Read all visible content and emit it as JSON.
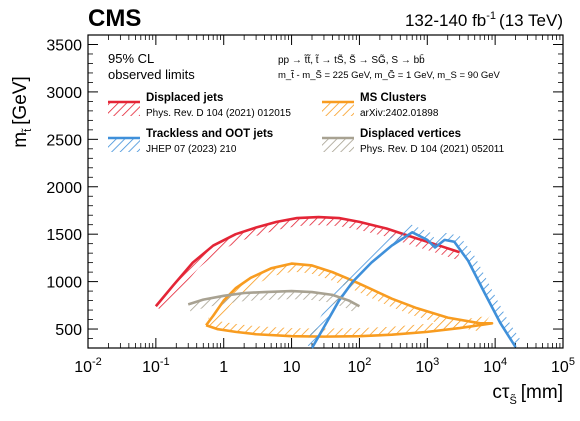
{
  "chart_data": {
    "type": "line",
    "experiment": "CMS",
    "lumi": "132-140 fb",
    "lumi_sup": "-1",
    "energy": "(13 TeV)",
    "xlabel": "cτ",
    "xlabel_sub": "S̃",
    "xlabel_unit": "[mm]",
    "ylabel": "m",
    "ylabel_sub": "t̃",
    "ylabel_unit": "[GeV]",
    "xscale": "log",
    "xlim": [
      0.01,
      100000
    ],
    "ylim": [
      300,
      3600
    ],
    "x_ticks": [
      {
        "value": 0.01,
        "base": "10",
        "exp": "-2"
      },
      {
        "value": 0.1,
        "base": "10",
        "exp": "-1"
      },
      {
        "value": 1,
        "base": "1",
        "exp": ""
      },
      {
        "value": 10,
        "base": "10",
        "exp": ""
      },
      {
        "value": 100,
        "base": "10",
        "exp": "2"
      },
      {
        "value": 1000,
        "base": "10",
        "exp": "3"
      },
      {
        "value": 10000,
        "base": "10",
        "exp": "4"
      },
      {
        "value": 100000,
        "base": "10",
        "exp": "5"
      }
    ],
    "y_ticks": [
      500,
      1000,
      1500,
      2000,
      2500,
      3000,
      3500
    ],
    "annotations": {
      "cl_line1": "95% CL",
      "cl_line2": "observed limits",
      "process_line": "pp → t̃t̃,  t̃ → tS̃,  S̃ → SG̃, S → bb̄",
      "mass_line": "m_t̃ - m_S̃ = 225 GeV,   m_G̃ = 1 GeV,   m_S = 90 GeV"
    },
    "legend_position": "top-left",
    "series": [
      {
        "name": "Displaced jets",
        "reference": "Phys. Rev. D 104 (2021) 012015",
        "color": "#e42536",
        "hatch_side": "below",
        "points": [
          [
            0.1,
            740
          ],
          [
            0.18,
            960
          ],
          [
            0.35,
            1200
          ],
          [
            0.7,
            1380
          ],
          [
            1.5,
            1500
          ],
          [
            3,
            1570
          ],
          [
            6,
            1630
          ],
          [
            12,
            1670
          ],
          [
            25,
            1680
          ],
          [
            50,
            1670
          ],
          [
            100,
            1630
          ],
          [
            250,
            1560
          ],
          [
            600,
            1470
          ],
          [
            1500,
            1380
          ],
          [
            3000,
            1310
          ]
        ]
      },
      {
        "name": "MS Clusters",
        "reference": "arXiv:2402.01898",
        "color": "#f89c20",
        "hatch_side": "inside",
        "points": [
          [
            0.55,
            540
          ],
          [
            0.7,
            640
          ],
          [
            1.0,
            800
          ],
          [
            1.5,
            930
          ],
          [
            2.5,
            1040
          ],
          [
            5,
            1140
          ],
          [
            10,
            1190
          ],
          [
            20,
            1170
          ],
          [
            40,
            1100
          ],
          [
            80,
            1010
          ],
          [
            150,
            920
          ],
          [
            300,
            820
          ],
          [
            700,
            720
          ],
          [
            2000,
            620
          ],
          [
            6000,
            560
          ],
          [
            9000,
            560
          ],
          [
            3000,
            510
          ],
          [
            1000,
            470
          ],
          [
            300,
            440
          ],
          [
            100,
            425
          ],
          [
            30,
            420
          ],
          [
            10,
            425
          ],
          [
            3,
            445
          ],
          [
            1.5,
            470
          ],
          [
            0.8,
            500
          ],
          [
            0.55,
            540
          ]
        ]
      },
      {
        "name": "Trackless and OOT jets",
        "reference": "JHEP 07 (2023) 210",
        "color": "#3f90da",
        "hatch_side": "outside",
        "points": [
          [
            20,
            300
          ],
          [
            30,
            520
          ],
          [
            50,
            800
          ],
          [
            80,
            1000
          ],
          [
            150,
            1200
          ],
          [
            300,
            1380
          ],
          [
            600,
            1520
          ],
          [
            1000,
            1440
          ],
          [
            1300,
            1360
          ],
          [
            1800,
            1440
          ],
          [
            2500,
            1420
          ],
          [
            4000,
            1220
          ],
          [
            7000,
            880
          ],
          [
            12000,
            560
          ],
          [
            20000,
            310
          ]
        ]
      },
      {
        "name": "Displaced vertices",
        "reference": "Phys. Rev. D 104 (2021) 052011",
        "color": "#a8a292",
        "hatch_side": "below",
        "points": [
          [
            0.3,
            760
          ],
          [
            0.5,
            810
          ],
          [
            1.0,
            850
          ],
          [
            2,
            880
          ],
          [
            4,
            890
          ],
          [
            10,
            900
          ],
          [
            20,
            890
          ],
          [
            40,
            860
          ],
          [
            70,
            800
          ],
          [
            100,
            740
          ]
        ]
      }
    ]
  }
}
